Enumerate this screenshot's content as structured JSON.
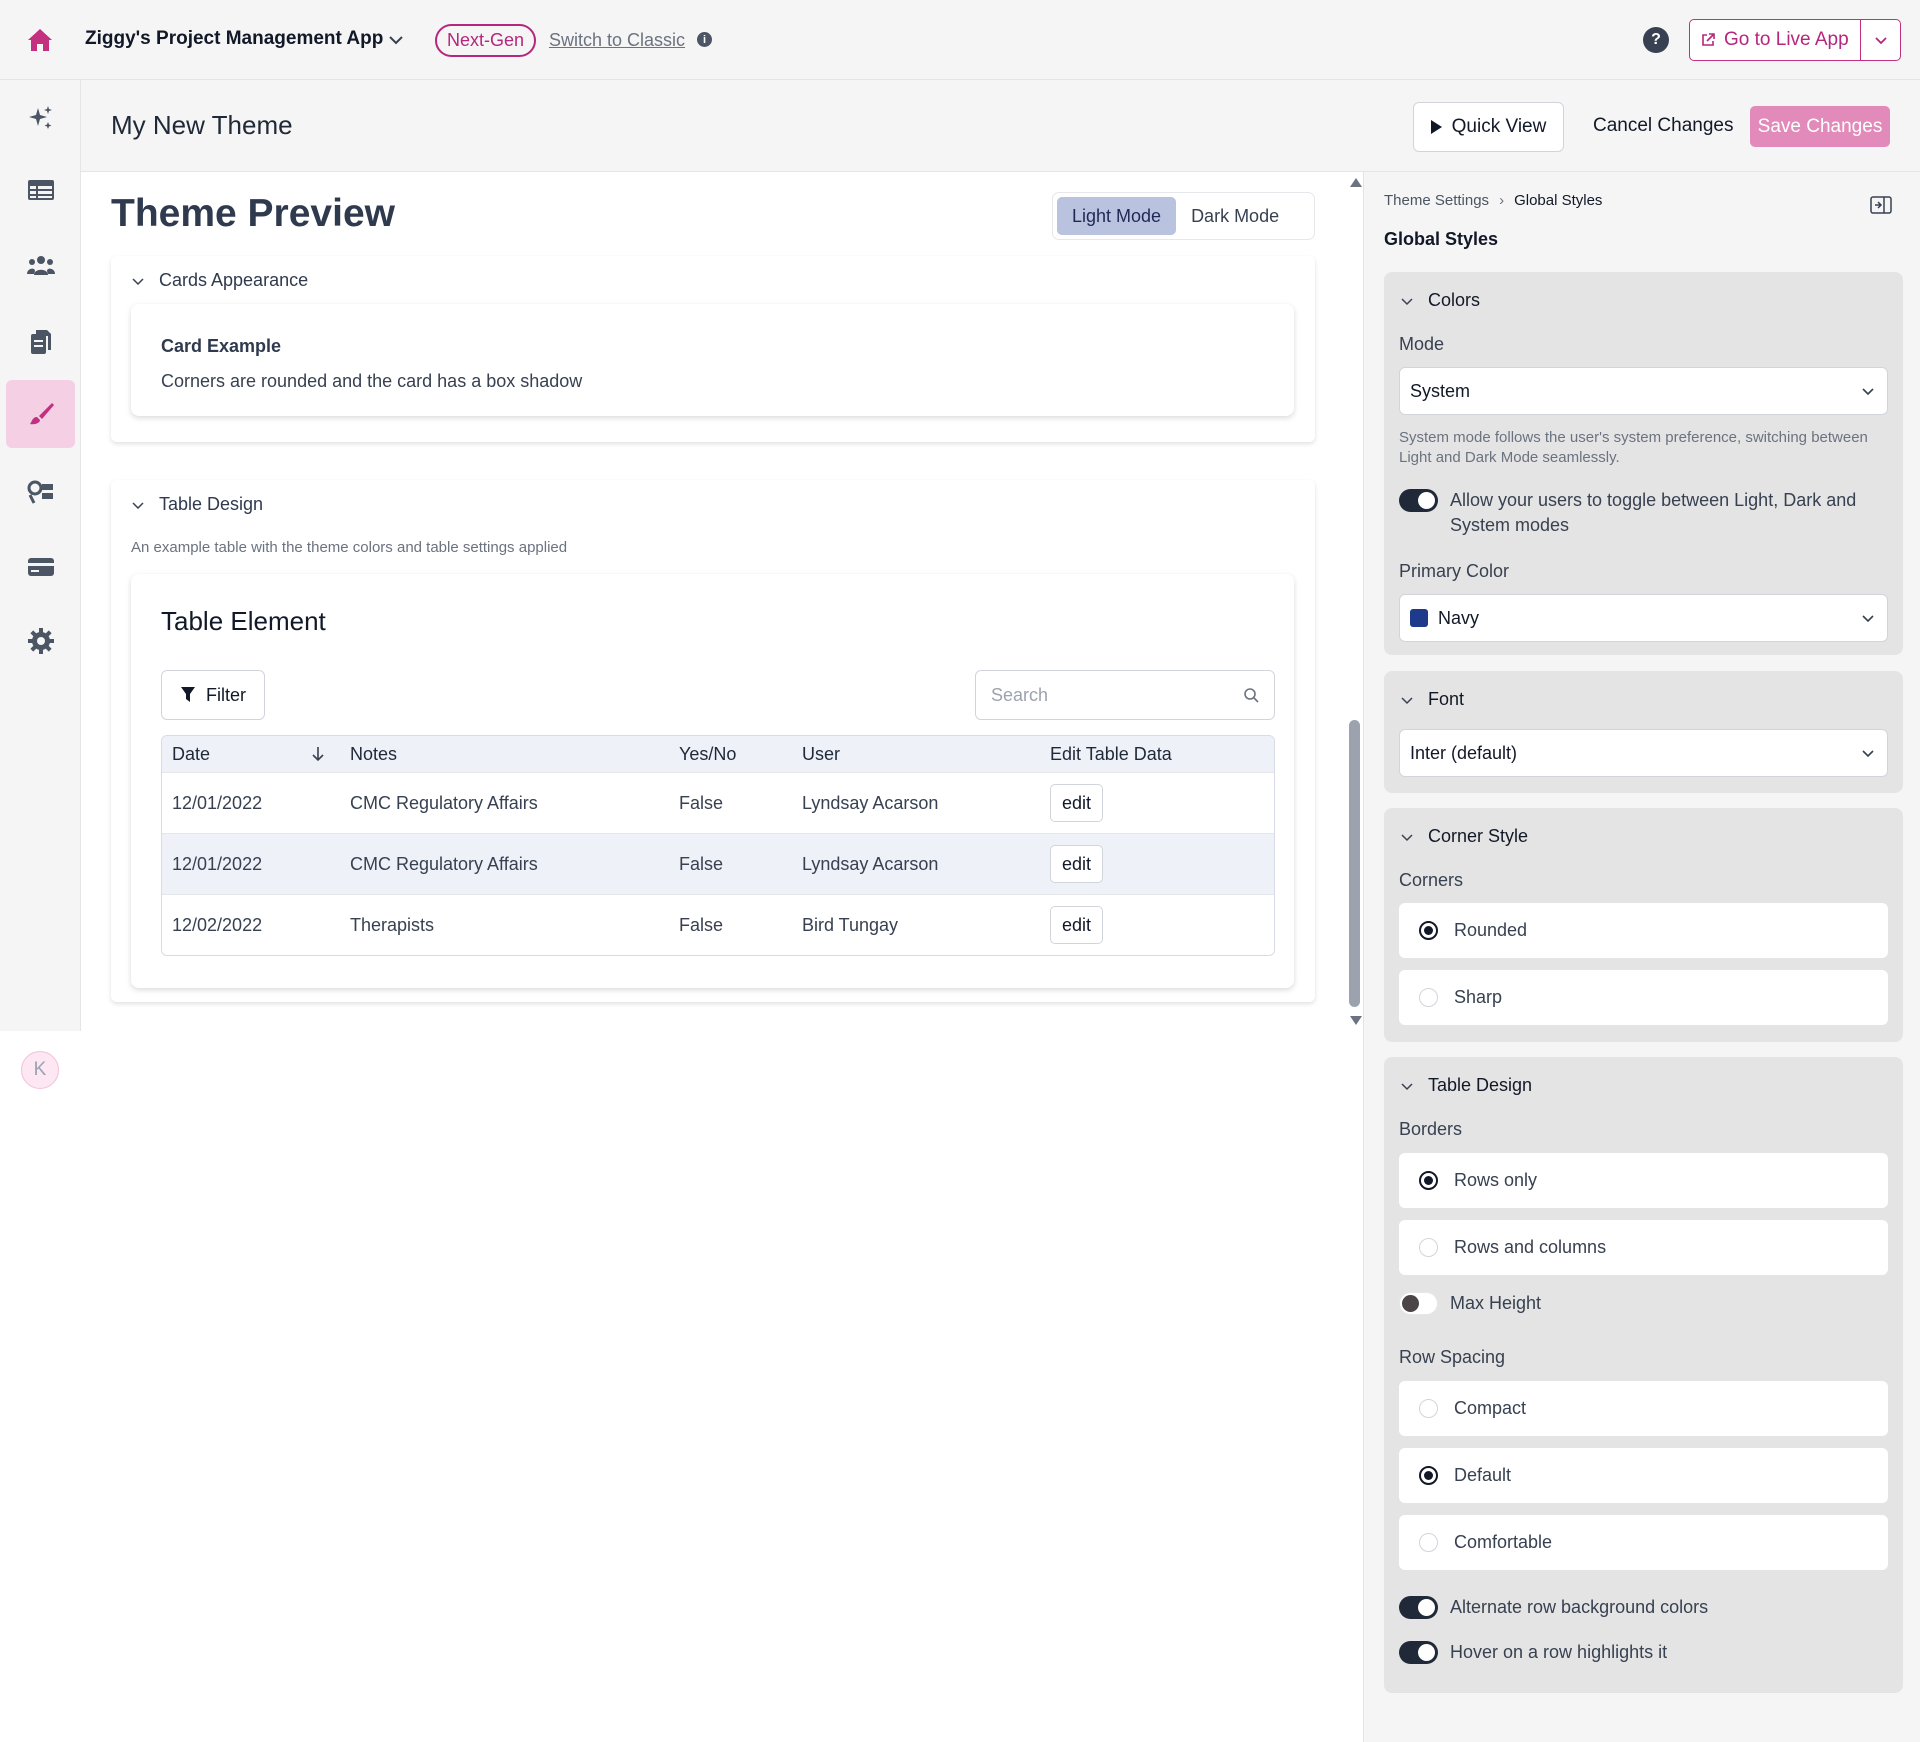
{
  "topbar": {
    "app_name": "Ziggy's Project Management App",
    "badge": "Next-Gen",
    "switch_link": "Switch to Classic",
    "help": "?",
    "info": "i",
    "live_button": "Go to Live App"
  },
  "rail": {
    "items": [
      "sparkles-icon",
      "table-icon",
      "users-icon",
      "pages-icon",
      "paintbrush-icon",
      "flow-icon",
      "card-icon",
      "gear-icon"
    ],
    "active": "paintbrush-icon",
    "avatar": "K"
  },
  "header": {
    "title": "My New Theme",
    "quick_view": "Quick View",
    "cancel": "Cancel Changes",
    "save": "Save Changes"
  },
  "preview": {
    "title": "Theme Preview",
    "modes": [
      "Light Mode",
      "Dark Mode"
    ],
    "active_mode": "Light Mode",
    "cards_section": {
      "label": "Cards Appearance",
      "card_title": "Card Example",
      "card_body": "Corners are rounded and the card has a box shadow"
    },
    "table_section": {
      "label": "Table Design",
      "subtitle": "An example table with the theme colors and table settings applied",
      "element_title": "Table Element",
      "filter": "Filter",
      "search_placeholder": "Search",
      "columns": [
        "Date",
        "Notes",
        "Yes/No",
        "User",
        "Edit Table Data"
      ],
      "rows": [
        [
          "12/01/2022",
          "CMC Regulatory Affairs",
          "False",
          "Lyndsay Acarson",
          "edit"
        ],
        [
          "12/01/2022",
          "CMC Regulatory Affairs",
          "False",
          "Lyndsay Acarson",
          "edit"
        ],
        [
          "12/02/2022",
          "Therapists",
          "False",
          "Bird Tungay",
          "edit"
        ]
      ]
    }
  },
  "panel": {
    "breadcrumb": [
      "Theme Settings",
      "Global Styles"
    ],
    "title": "Global Styles",
    "colors": {
      "label": "Colors",
      "mode_label": "Mode",
      "mode_value": "System",
      "mode_hint": "System mode follows the user's system preference, switching between Light and Dark Mode seamlessly.",
      "allow_toggle": "Allow your users to toggle between Light, Dark and System modes",
      "allow_toggle_on": true,
      "primary_label": "Primary Color",
      "primary_value": "Navy",
      "primary_hex": "#1e3a8a"
    },
    "font": {
      "label": "Font",
      "value": "Inter (default)"
    },
    "corner": {
      "label": "Corner Style",
      "corners_label": "Corners",
      "options": [
        "Rounded",
        "Sharp"
      ],
      "selected": "Rounded"
    },
    "table": {
      "label": "Table Design",
      "borders_label": "Borders",
      "border_options": [
        "Rows only",
        "Rows and columns"
      ],
      "border_selected": "Rows only",
      "max_height": "Max Height",
      "max_height_on": false,
      "spacing_label": "Row Spacing",
      "spacing_options": [
        "Compact",
        "Default",
        "Comfortable"
      ],
      "spacing_selected": "Default",
      "alternate": "Alternate row background colors",
      "alternate_on": true,
      "hover": "Hover on a row highlights it",
      "hover_on": true
    }
  },
  "colors": {
    "brand": "#b5267c",
    "save": "#e28ab9",
    "active_rail": "#f5d0e4",
    "mode_active": "#b9c2de"
  }
}
